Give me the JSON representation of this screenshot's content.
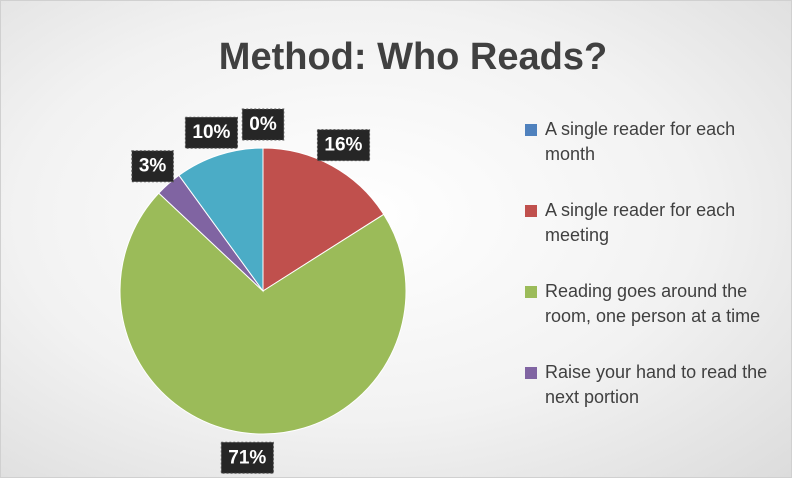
{
  "chart_data": {
    "type": "pie",
    "title": "Method: Who Reads?",
    "categories": [
      "A single reader for each month",
      "A single reader for each meeting",
      "Reading goes around the room, one person at a time",
      "Raise your hand to read the next portion",
      null
    ],
    "values": [
      0,
      16,
      71,
      3,
      10
    ],
    "value_labels": [
      "0%",
      "16%",
      "71%",
      "3%",
      "10%"
    ],
    "colors": [
      "#4f81bd",
      "#c0504d",
      "#9bbb59",
      "#8064a2",
      "#4bacc6"
    ],
    "legend": "right"
  }
}
